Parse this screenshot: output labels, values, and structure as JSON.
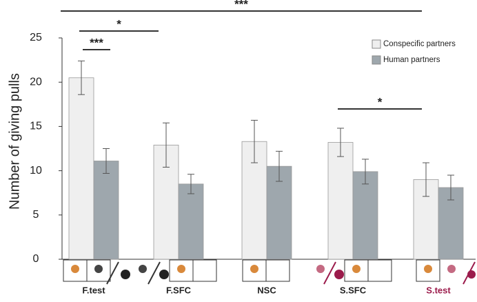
{
  "chart_data": {
    "type": "bar",
    "y_label": "Number of giving pulls",
    "categories": [
      "F.test",
      "F.SFC",
      "NSC",
      "S.SFC",
      "S.test"
    ],
    "category_label_colors": [
      "#222222",
      "#222222",
      "#222222",
      "#222222",
      "#9b1b4b"
    ],
    "series": [
      {
        "name": "Conspecific partners",
        "color": "#efefef",
        "values": [
          20.5,
          12.9,
          13.3,
          13.2,
          9.0
        ],
        "errors": [
          1.9,
          2.5,
          2.4,
          1.6,
          1.9
        ]
      },
      {
        "name": "Human partners",
        "color": "#9ea7ad",
        "values": [
          11.1,
          8.5,
          10.5,
          9.9,
          8.1
        ],
        "errors": [
          1.4,
          1.1,
          1.7,
          1.4,
          1.4
        ]
      }
    ],
    "ylim": [
      0,
      25
    ],
    "yticks": [
      0,
      5,
      10,
      15,
      20,
      25
    ],
    "significance": [
      "***",
      "*",
      "***",
      "*"
    ],
    "grid": false
  }
}
